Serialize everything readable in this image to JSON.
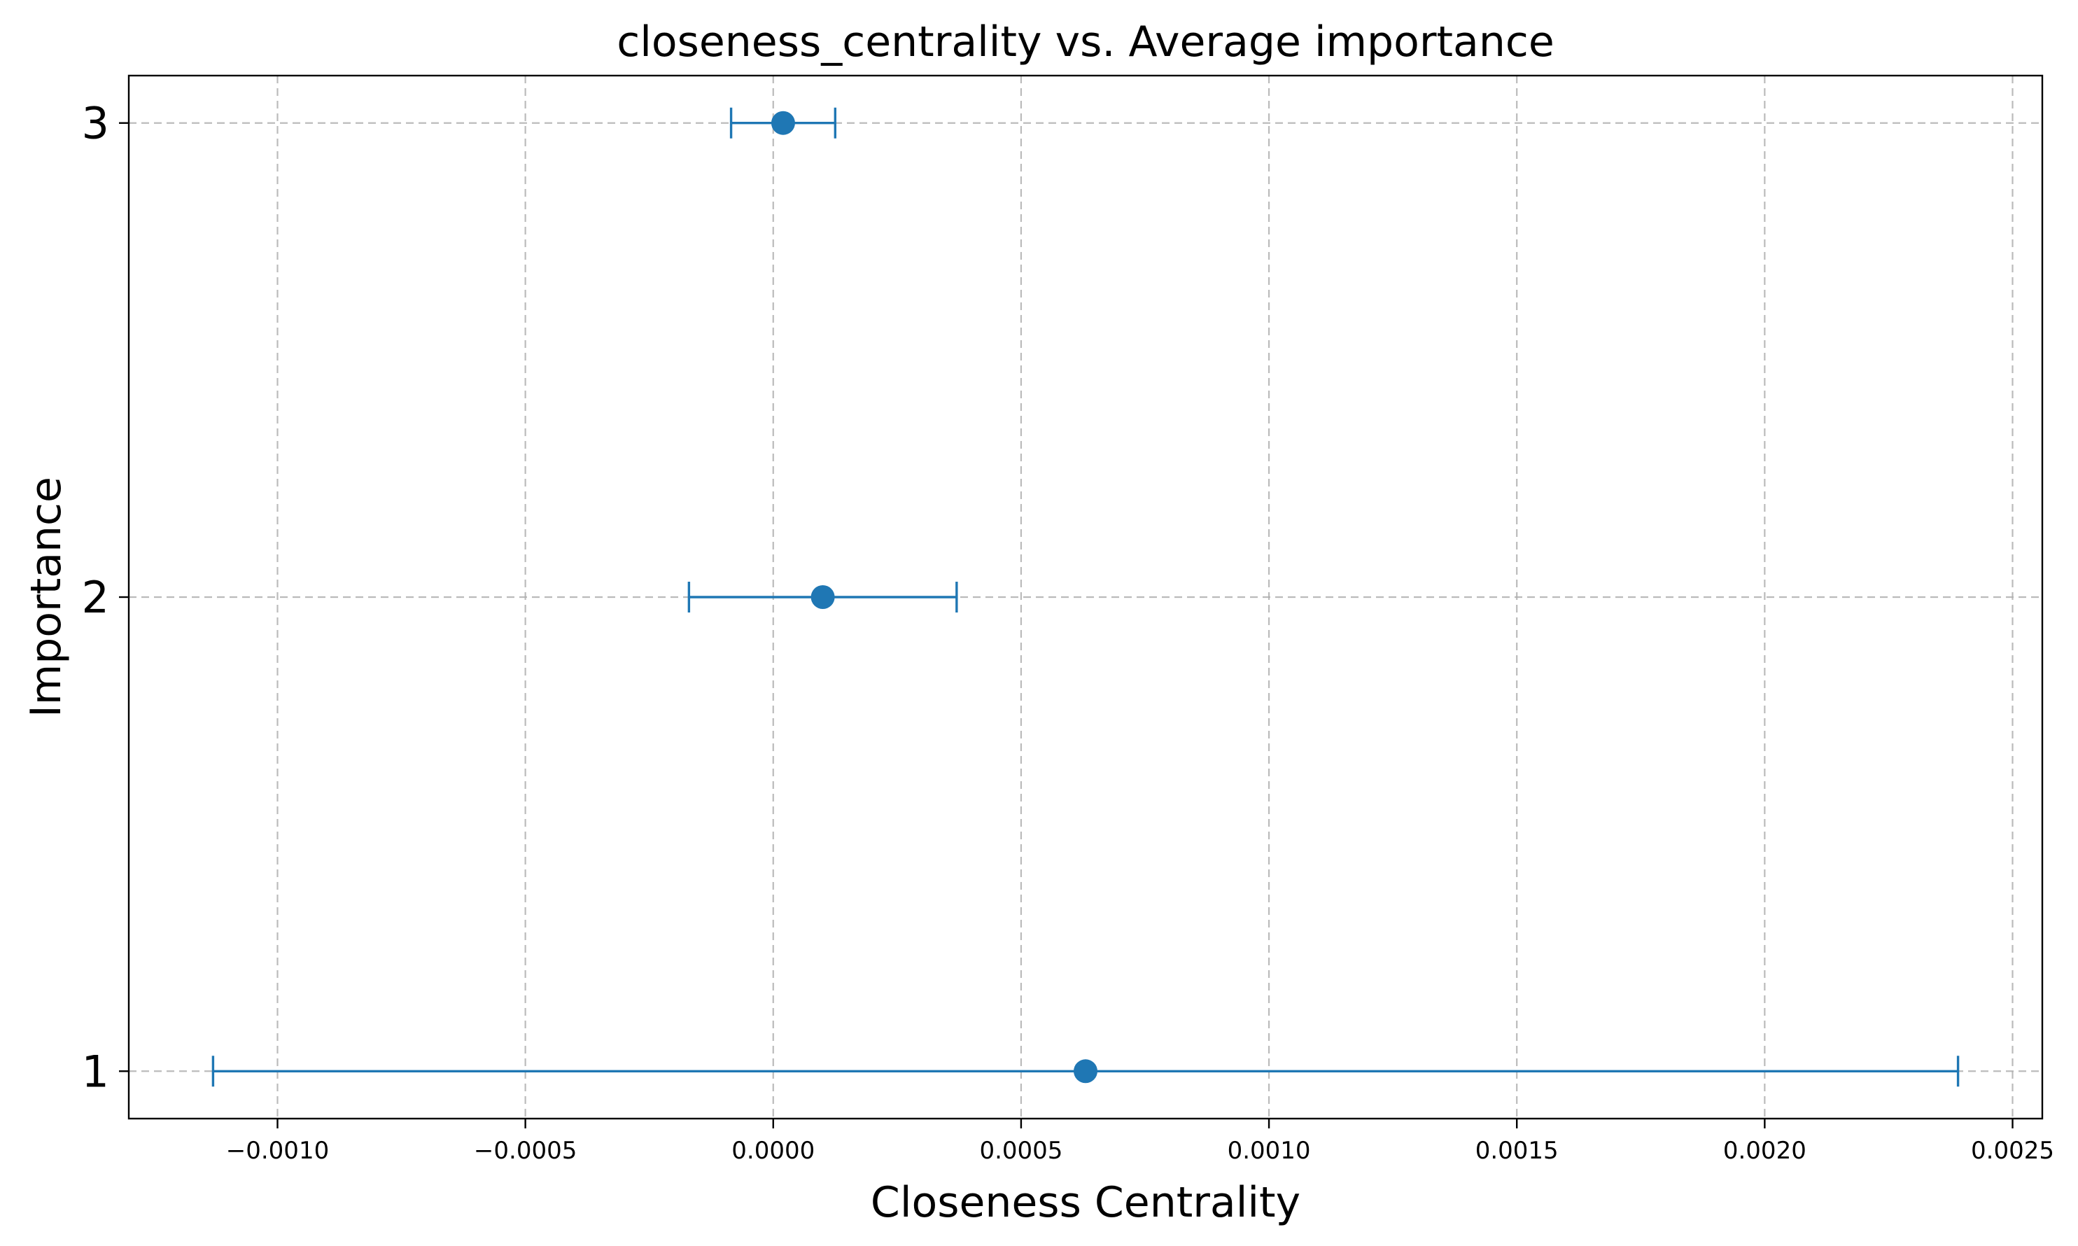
{
  "chart_data": {
    "type": "errorbar",
    "title": "closeness_centrality vs. Average importance",
    "xlabel": "Closeness Centrality",
    "ylabel": "Importance",
    "xlim": [
      -0.0013,
      0.00256
    ],
    "ylim": [
      0.9,
      3.1
    ],
    "x_ticks": [
      -0.001,
      -0.0005,
      0.0,
      0.0005,
      0.001,
      0.0015,
      0.002,
      0.0025
    ],
    "x_tick_labels": [
      "−0.0010",
      "−0.0005",
      "0.0000",
      "0.0005",
      "0.0010",
      "0.0015",
      "0.0020",
      "0.0025"
    ],
    "y_ticks": [
      1,
      2,
      3
    ],
    "y_tick_labels": [
      "1",
      "2",
      "3"
    ],
    "grid": true,
    "color": "#1f77b4",
    "points": [
      {
        "importance": 3,
        "mean": 2e-05,
        "error": 0.000105
      },
      {
        "importance": 2,
        "mean": 0.0001,
        "error": 0.00027
      },
      {
        "importance": 1,
        "mean": 0.00063,
        "error": 0.00176
      }
    ]
  }
}
